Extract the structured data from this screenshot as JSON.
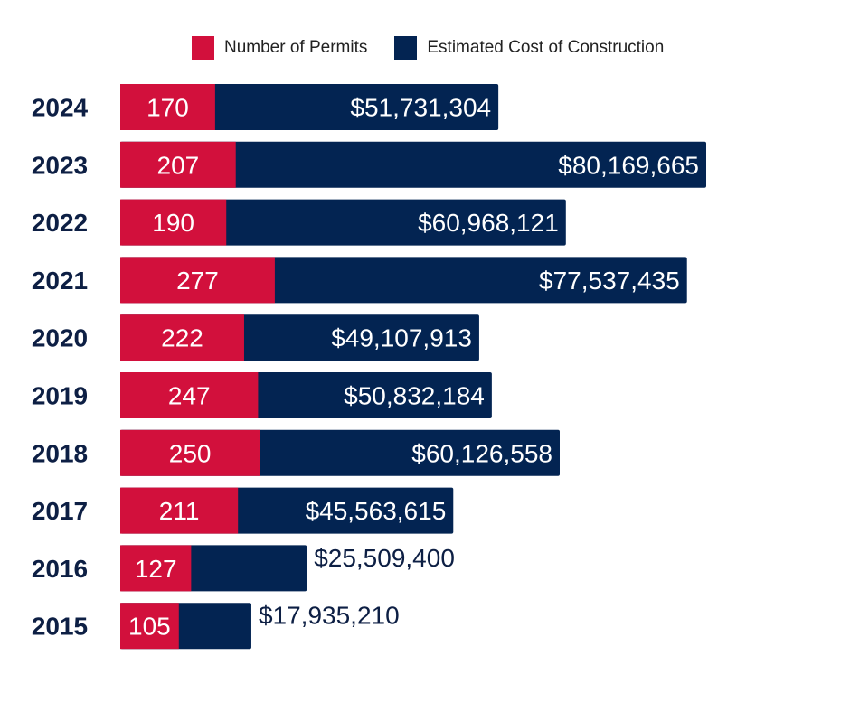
{
  "legend": {
    "permits_label": "Number of Permits",
    "cost_label": "Estimated Cost of Construction"
  },
  "colors": {
    "permits": "#d2103c",
    "cost": "#032452",
    "year_text": "#0d1f44",
    "outside_label": "#0d1f44"
  },
  "chart_data": {
    "type": "bar",
    "orientation": "horizontal",
    "stacked": true,
    "categories": [
      "2024",
      "2023",
      "2022",
      "2021",
      "2020",
      "2019",
      "2018",
      "2017",
      "2016",
      "2015"
    ],
    "series": [
      {
        "name": "Number of Permits",
        "values": [
          170,
          207,
          190,
          277,
          222,
          247,
          250,
          211,
          127,
          105
        ],
        "labels": [
          "170",
          "207",
          "190",
          "277",
          "222",
          "247",
          "250",
          "211",
          "127",
          "105"
        ]
      },
      {
        "name": "Estimated Cost of Construction",
        "values": [
          51731304,
          80169665,
          60968121,
          77537435,
          49107913,
          50832184,
          60126558,
          45563615,
          25509400,
          17935210
        ],
        "labels": [
          "$51,731,304",
          "$80,169,665",
          "$60,968,121",
          "$77,537,435",
          "$49,107,913",
          "$50,832,184",
          "$60,126,558",
          "$45,563,615",
          "$25,509,400",
          "$17,935,210"
        ]
      }
    ],
    "legend_position": "top",
    "grid": false
  }
}
